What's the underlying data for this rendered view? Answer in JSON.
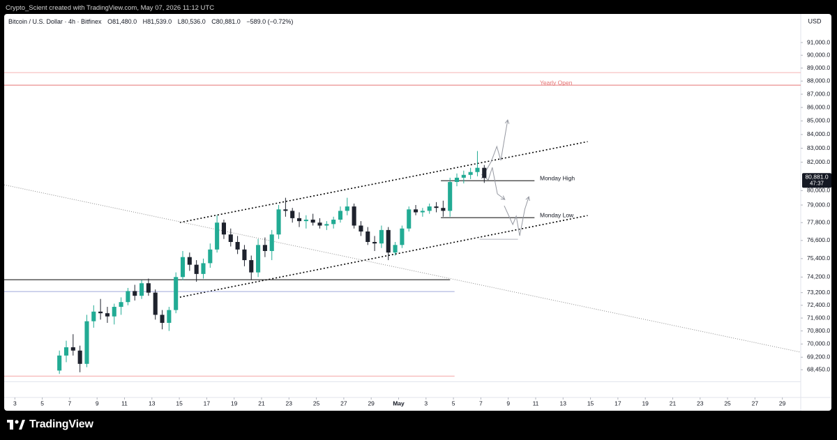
{
  "header": {
    "credit": "Crypto_Scient created with TradingView.com, May 07, 2026 11:12 UTC",
    "symbol": "Bitcoin / U.S. Dollar · 4h · Bitfinex",
    "ohlc": [
      {
        "label": "O",
        "value": "81,480.0"
      },
      {
        "label": "H",
        "value": "81,539.0"
      },
      {
        "label": "L",
        "value": "80,536.0"
      },
      {
        "label": "C",
        "value": "80,881.0"
      }
    ],
    "change": "−589.0 (−0.72%)"
  },
  "footer": {
    "brand": "TradingView"
  },
  "chart_data": {
    "type": "candlestick",
    "currency": "USD",
    "log_scale": true,
    "up_color": "#22ab94",
    "down_color": "#1e222d",
    "x": [
      "2026-04-06T00:00",
      "2026-04-06T12:00",
      "2026-04-07T00:00",
      "2026-04-07T12:00",
      "2026-04-08T00:00",
      "2026-04-08T12:00",
      "2026-04-09T00:00",
      "2026-04-09T12:00",
      "2026-04-10T00:00",
      "2026-04-10T12:00",
      "2026-04-11T00:00",
      "2026-04-11T12:00",
      "2026-04-12T00:00",
      "2026-04-12T12:00",
      "2026-04-13T00:00",
      "2026-04-13T12:00",
      "2026-04-14T00:00",
      "2026-04-14T12:00",
      "2026-04-15T00:00",
      "2026-04-15T12:00",
      "2026-04-16T00:00",
      "2026-04-16T12:00",
      "2026-04-17T00:00",
      "2026-04-17T12:00",
      "2026-04-18T00:00",
      "2026-04-18T12:00",
      "2026-04-19T00:00",
      "2026-04-19T12:00",
      "2026-04-20T00:00",
      "2026-04-20T12:00",
      "2026-04-21T00:00",
      "2026-04-21T12:00",
      "2026-04-22T00:00",
      "2026-04-22T12:00",
      "2026-04-23T00:00",
      "2026-04-23T12:00",
      "2026-04-24T00:00",
      "2026-04-24T12:00",
      "2026-04-25T00:00",
      "2026-04-25T12:00",
      "2026-04-26T00:00",
      "2026-04-26T12:00",
      "2026-04-27T00:00",
      "2026-04-27T12:00",
      "2026-04-28T00:00",
      "2026-04-28T12:00",
      "2026-04-29T00:00",
      "2026-04-29T12:00",
      "2026-04-30T00:00",
      "2026-04-30T12:00",
      "2026-05-01T00:00",
      "2026-05-01T12:00",
      "2026-05-02T00:00",
      "2026-05-02T12:00",
      "2026-05-03T00:00",
      "2026-05-03T12:00",
      "2026-05-04T00:00",
      "2026-05-04T12:00",
      "2026-05-05T00:00",
      "2026-05-05T12:00",
      "2026-05-06T00:00",
      "2026-05-06T12:00",
      "2026-05-07T00:00"
    ],
    "open": [
      68400,
      69300,
      69800,
      69600,
      68800,
      71400,
      72000,
      71900,
      71700,
      72300,
      72600,
      73300,
      73000,
      73800,
      73200,
      71800,
      71300,
      72100,
      74200,
      75500,
      75000,
      74400,
      75100,
      76000,
      77800,
      77000,
      76500,
      76000,
      75300,
      74500,
      76300,
      75900,
      77000,
      78700,
      78600,
      78100,
      77900,
      78000,
      77800,
      77600,
      77700,
      78000,
      78600,
      78900,
      77600,
      77200,
      76500,
      76400,
      77300,
      75800,
      76300,
      77400,
      78700,
      78500,
      78600,
      78900,
      78800,
      78600,
      80600,
      80900,
      81100,
      81300,
      81600
    ],
    "high": [
      69600,
      70200,
      70600,
      69900,
      71800,
      72400,
      72800,
      72300,
      72500,
      72900,
      73500,
      73700,
      74000,
      74100,
      73400,
      72100,
      72300,
      74500,
      75900,
      75800,
      75300,
      75400,
      76400,
      78300,
      78000,
      77400,
      76900,
      76300,
      75600,
      76700,
      76800,
      77300,
      79000,
      79500,
      78800,
      78500,
      78300,
      78400,
      78100,
      77900,
      78200,
      78900,
      79500,
      79100,
      77900,
      77500,
      76900,
      77600,
      77500,
      76500,
      77600,
      78900,
      79000,
      78800,
      79100,
      79200,
      79300,
      80900,
      81200,
      81400,
      81600,
      82800,
      81800
    ],
    "low": [
      68200,
      68900,
      69300,
      68300,
      68600,
      71000,
      71500,
      71300,
      71200,
      71800,
      72400,
      72700,
      72800,
      73000,
      71500,
      70900,
      70800,
      71900,
      74000,
      74600,
      73900,
      74100,
      74800,
      75800,
      76700,
      76200,
      75700,
      74900,
      74000,
      74200,
      75500,
      75300,
      76700,
      78200,
      77800,
      77500,
      77400,
      77600,
      77400,
      77300,
      77400,
      77800,
      78300,
      77400,
      76900,
      76300,
      75900,
      76100,
      75300,
      75600,
      76100,
      77200,
      78300,
      78200,
      78400,
      78500,
      78200,
      78200,
      80300,
      80500,
      80800,
      81000,
      80536
    ],
    "close": [
      69300,
      69800,
      69600,
      68800,
      71400,
      72000,
      71900,
      71700,
      72300,
      72600,
      73300,
      73000,
      73800,
      73200,
      71800,
      71300,
      72100,
      74200,
      75500,
      75000,
      74400,
      75100,
      76000,
      77800,
      77000,
      76500,
      76000,
      75300,
      74500,
      76300,
      75900,
      77000,
      78700,
      78600,
      78100,
      77900,
      78000,
      77800,
      77600,
      77700,
      78000,
      78600,
      78900,
      77600,
      77200,
      76500,
      76400,
      77300,
      75800,
      76300,
      77400,
      78700,
      78500,
      78600,
      78900,
      78800,
      78600,
      80600,
      80900,
      81100,
      81300,
      81600,
      80881
    ],
    "xlim": [
      "2026-04-02T05:18",
      "2026-05-30T08:10"
    ],
    "ylim": [
      67020,
      93180
    ],
    "xticks": [
      {
        "value": "2026-04-03T00:00",
        "label": "3"
      },
      {
        "value": "2026-04-05T00:00",
        "label": "5"
      },
      {
        "value": "2026-04-07T00:00",
        "label": "7"
      },
      {
        "value": "2026-04-09T00:00",
        "label": "9"
      },
      {
        "value": "2026-04-11T00:00",
        "label": "11"
      },
      {
        "value": "2026-04-13T00:00",
        "label": "13"
      },
      {
        "value": "2026-04-15T00:00",
        "label": "15"
      },
      {
        "value": "2026-04-17T00:00",
        "label": "17"
      },
      {
        "value": "2026-04-19T00:00",
        "label": "19"
      },
      {
        "value": "2026-04-21T00:00",
        "label": "21"
      },
      {
        "value": "2026-04-23T00:00",
        "label": "23"
      },
      {
        "value": "2026-04-25T00:00",
        "label": "25"
      },
      {
        "value": "2026-04-27T00:00",
        "label": "27"
      },
      {
        "value": "2026-04-29T00:00",
        "label": "29"
      },
      {
        "value": "2026-05-01T00:00",
        "label": "May"
      },
      {
        "value": "2026-05-03T00:00",
        "label": "3"
      },
      {
        "value": "2026-05-05T00:00",
        "label": "5"
      },
      {
        "value": "2026-05-07T00:00",
        "label": "7"
      },
      {
        "value": "2026-05-09T00:00",
        "label": "9"
      },
      {
        "value": "2026-05-11T00:00",
        "label": "11"
      },
      {
        "value": "2026-05-13T00:00",
        "label": "13"
      },
      {
        "value": "2026-05-15T00:00",
        "label": "15"
      },
      {
        "value": "2026-05-17T00:00",
        "label": "17"
      },
      {
        "value": "2026-05-19T00:00",
        "label": "19"
      },
      {
        "value": "2026-05-21T00:00",
        "label": "21"
      },
      {
        "value": "2026-05-23T00:00",
        "label": "23"
      },
      {
        "value": "2026-05-25T00:00",
        "label": "25"
      },
      {
        "value": "2026-05-27T00:00",
        "label": "27"
      },
      {
        "value": "2026-05-29T00:00",
        "label": "29"
      }
    ],
    "yticks": [
      {
        "value": 91000,
        "label": "91,000.0"
      },
      {
        "value": 90000,
        "label": "90,000.0"
      },
      {
        "value": 89000,
        "label": "89,000.0"
      },
      {
        "value": 88000,
        "label": "88,000.0"
      },
      {
        "value": 87000,
        "label": "87,000.0"
      },
      {
        "value": 86000,
        "label": "86,000.0"
      },
      {
        "value": 85000,
        "label": "85,000.0"
      },
      {
        "value": 84000,
        "label": "84,000.0"
      },
      {
        "value": 83000,
        "label": "83,000.0"
      },
      {
        "value": 82000,
        "label": "82,000.0"
      },
      {
        "value": 80000,
        "label": "80,000.0"
      },
      {
        "value": 79000,
        "label": "79,000.0"
      },
      {
        "value": 77800,
        "label": "77,800.0"
      },
      {
        "value": 76600,
        "label": "76,600.0"
      },
      {
        "value": 75400,
        "label": "75,400.0"
      },
      {
        "value": 74200,
        "label": "74,200.0"
      },
      {
        "value": 73200,
        "label": "73,200.0"
      },
      {
        "value": 72400,
        "label": "72,400.0"
      },
      {
        "value": 71600,
        "label": "71,600.0"
      },
      {
        "value": 70800,
        "label": "70,800.0"
      },
      {
        "value": 70000,
        "label": "70,000.0"
      },
      {
        "value": 69200,
        "label": "69,200.0"
      },
      {
        "value": 68450,
        "label": "68,450.0"
      }
    ],
    "last_price": {
      "value": 80881,
      "label": "80,881.0",
      "countdown": "47:37"
    },
    "drawings": [
      {
        "style": "solid",
        "color": "#f5b5b5",
        "points": [
          [
            "2026-04-02T05:18",
            88650
          ],
          [
            "2026-05-30T08:10",
            88650
          ]
        ]
      },
      {
        "style": "solid",
        "color": "#e57373",
        "label": "Yearly Open",
        "points": [
          [
            "2026-04-02T05:18",
            87690
          ],
          [
            "2026-05-30T08:10",
            87690
          ]
        ]
      },
      {
        "style": "dotted",
        "color": "#000000",
        "points": [
          [
            "2026-04-15T01:00",
            77810
          ],
          [
            "2026-05-14T19:00",
            83480
          ]
        ]
      },
      {
        "style": "dotted",
        "color": "#000000",
        "points": [
          [
            "2026-04-15T01:00",
            72910
          ],
          [
            "2026-05-14T19:00",
            78280
          ]
        ]
      },
      {
        "style": "fine",
        "color": "#8a8a8a",
        "points": [
          [
            "2026-04-02T05:18",
            80400
          ],
          [
            "2026-05-30T08:10",
            69500
          ]
        ]
      },
      {
        "style": "solid",
        "color": "#000000",
        "points": [
          [
            "2026-04-02T05:18",
            74030
          ],
          [
            "2026-05-04T18:00",
            74030
          ]
        ]
      },
      {
        "style": "solid",
        "color": "#9fa8da",
        "points": [
          [
            "2026-04-02T05:18",
            73270
          ],
          [
            "2026-05-05T02:00",
            73270
          ]
        ]
      },
      {
        "style": "solid",
        "color": "#f4a6a6",
        "points": [
          [
            "2026-04-02T05:18",
            68070
          ],
          [
            "2026-05-05T02:00",
            68070
          ]
        ]
      },
      {
        "style": "solid",
        "color": "#e0e3eb",
        "points": [
          [
            "2026-04-02T05:18",
            67740
          ],
          [
            "2026-05-30T08:10",
            67740
          ]
        ]
      },
      {
        "style": "solid",
        "color": "#000000",
        "label": "Monday High",
        "points": [
          [
            "2026-05-04T02:00",
            80690
          ],
          [
            "2026-05-10T22:00",
            80690
          ]
        ]
      },
      {
        "style": "solid",
        "color": "#000000",
        "label": "Monday Low",
        "points": [
          [
            "2026-05-04T02:00",
            78140
          ],
          [
            "2026-05-10T22:00",
            78140
          ]
        ]
      },
      {
        "style": "solid",
        "color": "#b2b5be",
        "points": [
          [
            "2026-05-06T22:00",
            76680
          ],
          [
            "2026-05-09T17:00",
            76680
          ]
        ]
      },
      {
        "style": "arrow",
        "color": "#9598a1",
        "points": [
          [
            "2026-05-07T01:00",
            80830
          ],
          [
            "2026-05-07T18:00",
            82030
          ],
          [
            "2026-05-08T04:00",
            83130
          ],
          [
            "2026-05-08T11:00",
            82130
          ],
          [
            "2026-05-08T23:00",
            85070
          ]
        ]
      },
      {
        "style": "arrow",
        "color": "#9598a1",
        "points": [
          [
            "2026-05-07T01:00",
            81140
          ],
          [
            "2026-05-07T13:00",
            80740
          ],
          [
            "2026-05-07T20:00",
            81630
          ],
          [
            "2026-05-08T05:00",
            79770
          ],
          [
            "2026-05-08T18:00",
            79380
          ]
        ]
      },
      {
        "style": "arrow",
        "color": "#9598a1",
        "points": [
          [
            "2026-05-08T17:00",
            78950
          ],
          [
            "2026-05-09T08:00",
            77670
          ],
          [
            "2026-05-09T14:00",
            78240
          ],
          [
            "2026-05-09T20:00",
            76910
          ],
          [
            "2026-05-10T05:00",
            78710
          ],
          [
            "2026-05-10T12:00",
            79570
          ]
        ]
      }
    ]
  }
}
